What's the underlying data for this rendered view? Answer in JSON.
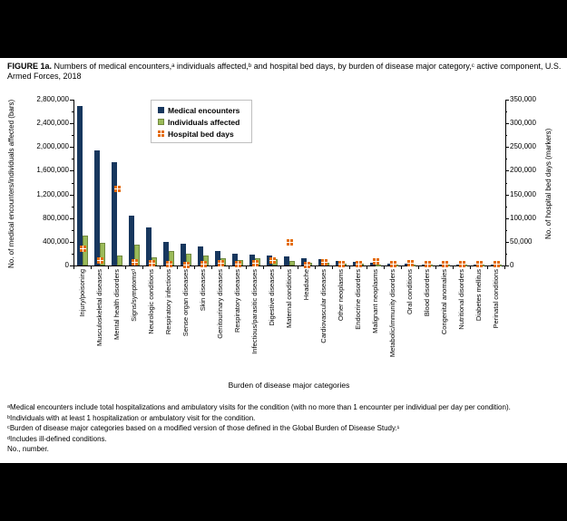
{
  "figure": {
    "title_prefix": "FIGURE 1a.",
    "title_rest": " Numbers of medical encounters,ᵃ individuals affected,ᵇ and hospital bed days, by burden of disease major category,ᶜ active component, U.S. Armed Forces, 2018"
  },
  "chart_data": {
    "type": "bar",
    "title": "FIGURE 1a. Numbers of medical encounters, individuals affected, and hospital bed days, by burden of disease major category, active component, U.S. Armed Forces, 2018",
    "xlabel": "Burden of disease major categories",
    "legend_position": "top-left-inside",
    "grid": false,
    "categories": [
      "Injury/poisoning",
      "Musculoskeletal diseases",
      "Mental health disorders",
      "Signs/symptomsᵈ",
      "Neurologic conditions",
      "Respiratory infections",
      "Sense organ diseases",
      "Skin diseases",
      "Genitourinary diseases",
      "Respiratory diseases",
      "Infectious/parasitic diseases",
      "Digestive diseases",
      "Maternal conditions",
      "Headache",
      "Cardiovascular diseases",
      "Other neoplasms",
      "Endocrine disorders",
      "Malignant neoplasms",
      "Metabolic/immunity disorders",
      "Oral conditions",
      "Blood disorders",
      "Congenital anomalies",
      "Nutritional disorders",
      "Diabetes mellitus",
      "Perinatal conditions"
    ],
    "left_axis": {
      "title": "No. of medical encounters/individuals affected (bars)",
      "min": 0,
      "max": 2800000,
      "major": 400000,
      "minor": 200000
    },
    "right_axis": {
      "title": "No. of hospital bed days (markers)",
      "min": 0,
      "max": 350000,
      "major": 50000,
      "minor": 25000
    },
    "series": [
      {
        "name": "Medical encounters",
        "type": "bar",
        "axis": "left",
        "color": "#17375E",
        "values": [
          2690000,
          1940000,
          1740000,
          840000,
          650000,
          395000,
          360000,
          320000,
          238000,
          197000,
          176000,
          168000,
          150000,
          117000,
          107000,
          70000,
          65000,
          52000,
          36000,
          25000,
          20000,
          22000,
          12000,
          10000,
          4000
        ]
      },
      {
        "name": "Individuals affected",
        "type": "bar",
        "axis": "left",
        "color": "#9BBB59",
        "values": [
          510000,
          385000,
          165000,
          345000,
          135000,
          240000,
          205000,
          170000,
          115000,
          90000,
          115000,
          105000,
          72000,
          40000,
          48000,
          31000,
          27000,
          16000,
          16000,
          12000,
          10000,
          11000,
          6000,
          5000,
          2000
        ]
      },
      {
        "name": "Hospital bed days",
        "type": "marker",
        "axis": "right",
        "color": "#E46C0A",
        "values": [
          35000,
          10000,
          161000,
          6000,
          4000,
          3000,
          1500,
          2500,
          4000,
          3500,
          4500,
          10000,
          48000,
          1500,
          6000,
          3500,
          3500,
          8500,
          2500,
          4500,
          2500,
          3500,
          2500,
          3000,
          3000
        ]
      }
    ]
  },
  "footnotes": [
    "ᵃMedical encounters include total hospitalizations and ambulatory visits for the condition (with no more than 1 encounter per individual per day per condition).",
    "ᵇIndividuals with at least 1 hospitalization or ambulatory visit for the condition.",
    "ᶜBurden of disease major categories based on a modified version of those defined in the Global Burden of Disease Study.¹",
    "ᵈIncludes ill-defined conditions.",
    "No., number."
  ]
}
